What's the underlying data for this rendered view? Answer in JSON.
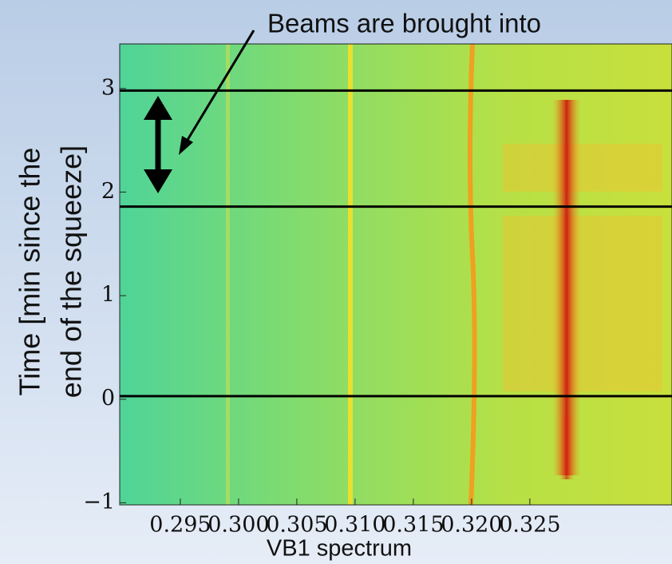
{
  "chart_data": {
    "type": "spectrogram",
    "annotation": "Beams are brought into",
    "xlabel": "VB1 spectrum",
    "ylabel": [
      "Time [min since the",
      "end of the squeeze]"
    ],
    "xlim": [
      0.2898,
      0.3372
    ],
    "ylim": [
      -1.02,
      3.43
    ],
    "xticks": [
      0.295,
      {
        "value": 0.3,
        "label": "0.300"
      },
      0.305,
      {
        "value": 0.31,
        "label": "0.310"
      },
      0.315,
      {
        "value": 0.32,
        "label": "0.320"
      },
      0.325
    ],
    "yticks": [
      {
        "value": -1,
        "label": "−1"
      },
      0,
      1,
      2,
      3
    ],
    "hlines": [
      2.98,
      1.86,
      0.03
    ],
    "hline_color": "#000000"
  }
}
